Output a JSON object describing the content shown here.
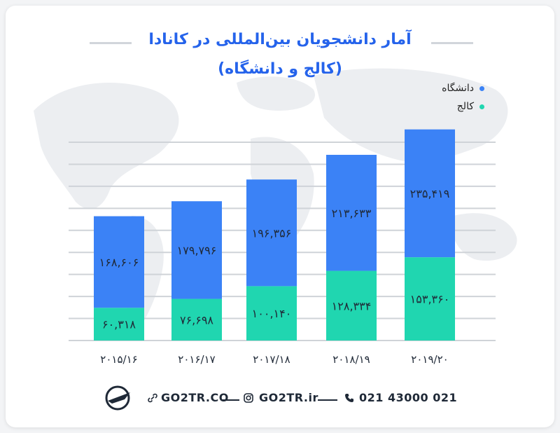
{
  "title": {
    "line1": "آمار دانشجویان بین‌المللی در کانادا",
    "line2": "(کالج و دانشگاه)"
  },
  "colors": {
    "university": "#3b82f6",
    "college": "#20d6b0",
    "title": "#2563eb",
    "grid": "#cfd3d8"
  },
  "legend": {
    "university": "دانشگاه",
    "college": "کالج"
  },
  "chart_data": {
    "type": "bar",
    "stacked": true,
    "categories": [
      "۲۰۱۵/۱۶",
      "۲۰۱۶/۱۷",
      "۲۰۱۷/۱۸",
      "۲۰۱۸/۱۹",
      "۲۰۱۹/۲۰"
    ],
    "series": [
      {
        "name": "کالج",
        "key": "college",
        "values": [
          60318,
          76698,
          100140,
          128334,
          153360
        ],
        "labels": [
          "۶۰,۳۱۸",
          "۷۶,۶۹۸",
          "۱۰۰,۱۴۰",
          "۱۲۸,۳۳۴",
          "۱۵۳,۳۶۰"
        ]
      },
      {
        "name": "دانشگاه",
        "key": "university",
        "values": [
          168606,
          179796,
          196356,
          213633,
          235419
        ],
        "labels": [
          "۱۶۸,۶۰۶",
          "۱۷۹,۷۹۶",
          "۱۹۶,۳۵۶",
          "۲۱۳,۶۳۳",
          "۲۳۵,۴۱۹"
        ]
      }
    ],
    "legend_position": "top-right",
    "grid": true
  },
  "footer": {
    "phone_icon": "phone-icon",
    "phone": "021 43000 021",
    "instagram_icon": "instagram-icon",
    "instagram": "GO2TR.ir",
    "link_icon": "link-icon",
    "website": "GO2TR.CO",
    "logo": "go2tr-plane-logo"
  }
}
